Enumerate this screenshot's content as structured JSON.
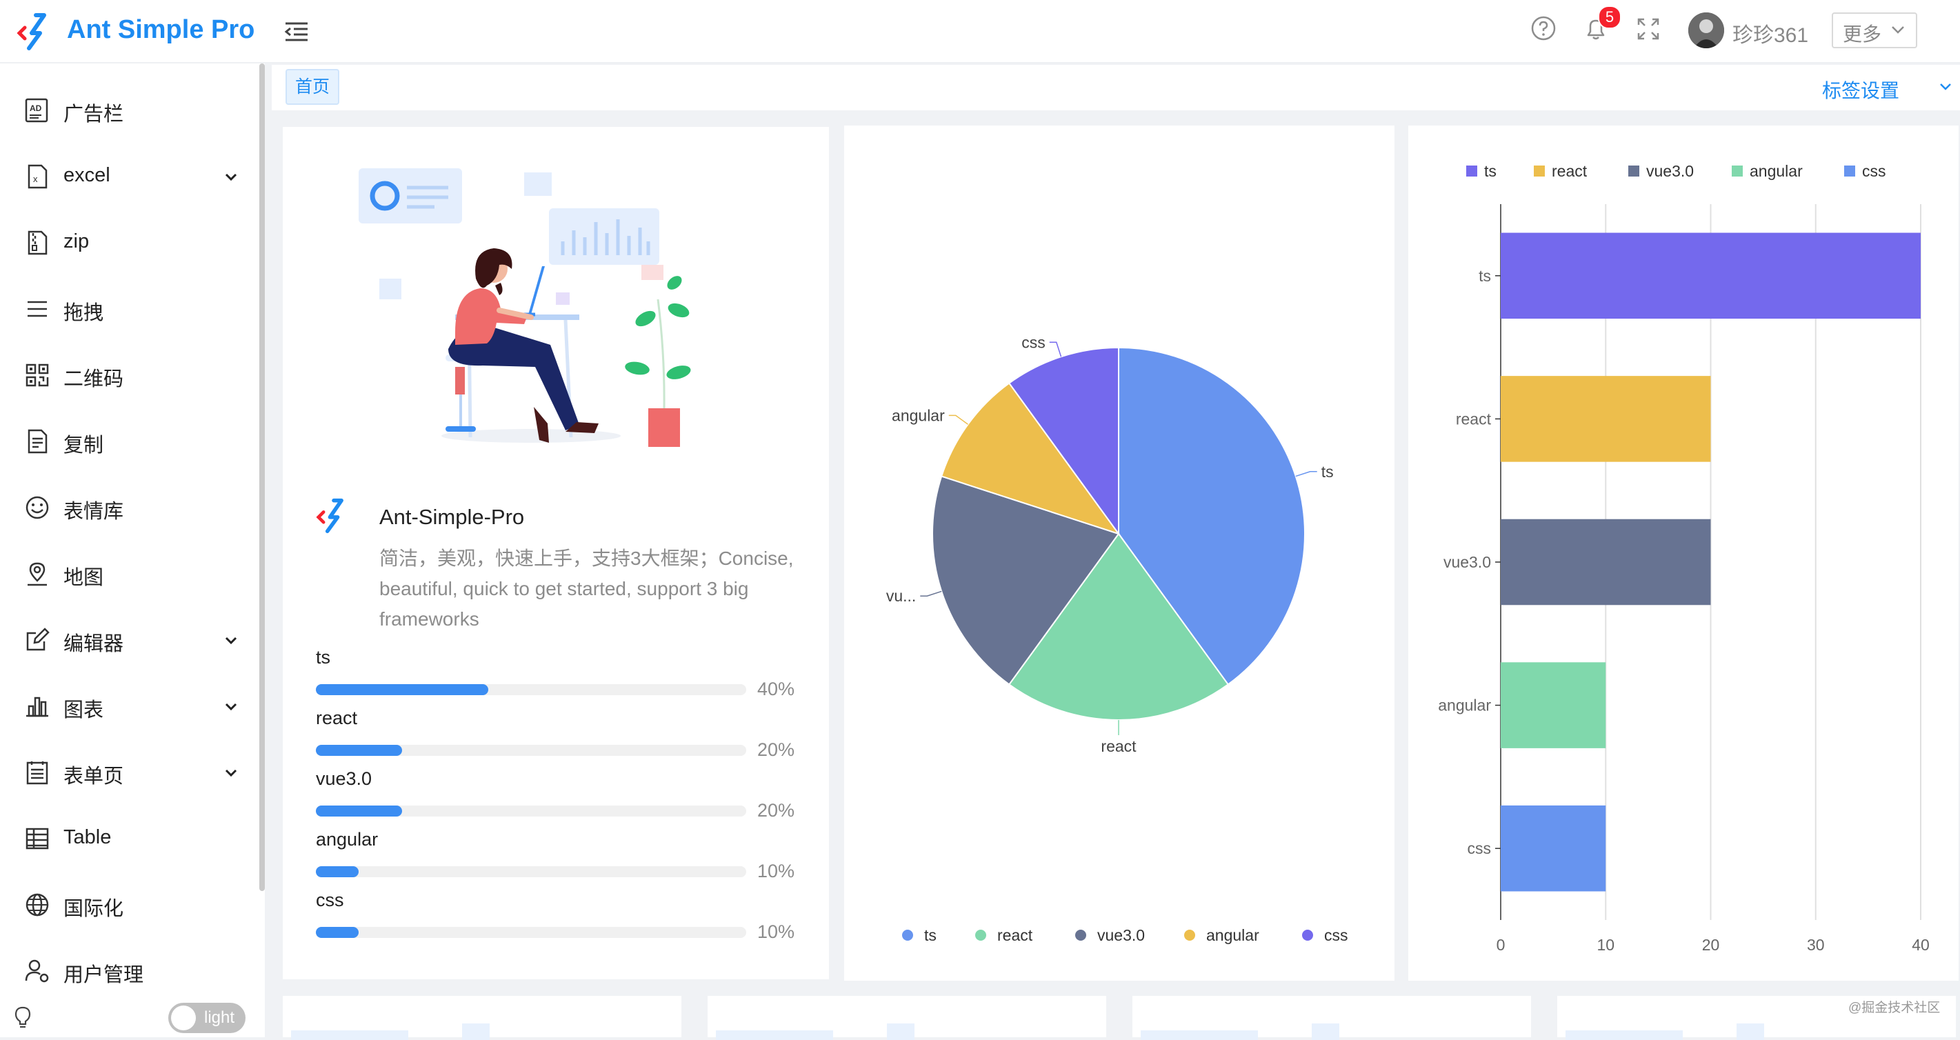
{
  "app": {
    "title": "Ant Simple Pro"
  },
  "header": {
    "notification_count": "5",
    "username": "珍珍361",
    "more_label": "更多"
  },
  "sidebar": {
    "items": [
      {
        "label": "广告栏",
        "icon": "ad-icon",
        "has_submenu": false
      },
      {
        "label": "excel",
        "icon": "excel-file-icon",
        "has_submenu": true
      },
      {
        "label": "zip",
        "icon": "zip-file-icon",
        "has_submenu": false
      },
      {
        "label": "拖拽",
        "icon": "drag-lines-icon",
        "has_submenu": false
      },
      {
        "label": "二维码",
        "icon": "qrcode-icon",
        "has_submenu": false
      },
      {
        "label": "复制",
        "icon": "copy-file-icon",
        "has_submenu": false
      },
      {
        "label": "表情库",
        "icon": "smile-icon",
        "has_submenu": false
      },
      {
        "label": "地图",
        "icon": "map-pin-icon",
        "has_submenu": false
      },
      {
        "label": "编辑器",
        "icon": "edit-icon",
        "has_submenu": true
      },
      {
        "label": "图表",
        "icon": "bar-chart-icon",
        "has_submenu": true
      },
      {
        "label": "表单页",
        "icon": "form-icon",
        "has_submenu": true
      },
      {
        "label": "Table",
        "icon": "table-icon",
        "has_submenu": false
      },
      {
        "label": "国际化",
        "icon": "globe-icon",
        "has_submenu": false
      },
      {
        "label": "用户管理",
        "icon": "user-settings-icon",
        "has_submenu": false
      }
    ],
    "theme_label": "light"
  },
  "tabs": {
    "home": "首页",
    "settings_label": "标签设置"
  },
  "intro": {
    "name": "Ant-Simple-Pro",
    "description": "简洁，美观，快速上手，支持3大框架；Concise, beautiful, quick to get started, support 3 big frameworks",
    "skills": [
      {
        "name": "ts",
        "percent": 40,
        "label": "40%"
      },
      {
        "name": "react",
        "percent": 20,
        "label": "20%"
      },
      {
        "name": "vue3.0",
        "percent": 20,
        "label": "20%"
      },
      {
        "name": "angular",
        "percent": 10,
        "label": "10%"
      },
      {
        "name": "css",
        "percent": 10,
        "label": "10%"
      }
    ]
  },
  "colors": {
    "accent": "#1d8bf1",
    "progress": "#3b8df2"
  },
  "chart_data": [
    {
      "type": "pie",
      "categories": [
        "ts",
        "react",
        "vue3.0",
        "angular",
        "css"
      ],
      "values": [
        40,
        20,
        20,
        10,
        10
      ],
      "slice_labels": [
        "ts",
        "react",
        "vu...",
        "angular",
        "css"
      ],
      "colors": [
        "#6794ef",
        "#80d8ac",
        "#677392",
        "#edbe4c",
        "#7469ed"
      ],
      "legend": [
        "ts",
        "react",
        "vue3.0",
        "angular",
        "css"
      ],
      "legend_position": "bottom"
    },
    {
      "type": "bar",
      "orientation": "horizontal",
      "categories": [
        "ts",
        "react",
        "vue3.0",
        "angular",
        "css"
      ],
      "values": [
        40,
        20,
        20,
        10,
        10
      ],
      "colors": [
        "#7469ed",
        "#edbe4c",
        "#677392",
        "#80d8ac",
        "#6794ef"
      ],
      "legend": [
        "ts",
        "react",
        "vue3.0",
        "angular",
        "css"
      ],
      "legend_colors": [
        "#7469ed",
        "#edbe4c",
        "#677392",
        "#80d8ac",
        "#6794ef"
      ],
      "legend_position": "top",
      "xlim": [
        0,
        40
      ],
      "xticks": [
        0,
        10,
        20,
        30,
        40
      ],
      "grid": true
    }
  ],
  "footer": {
    "watermark": "@掘金技术社区"
  }
}
